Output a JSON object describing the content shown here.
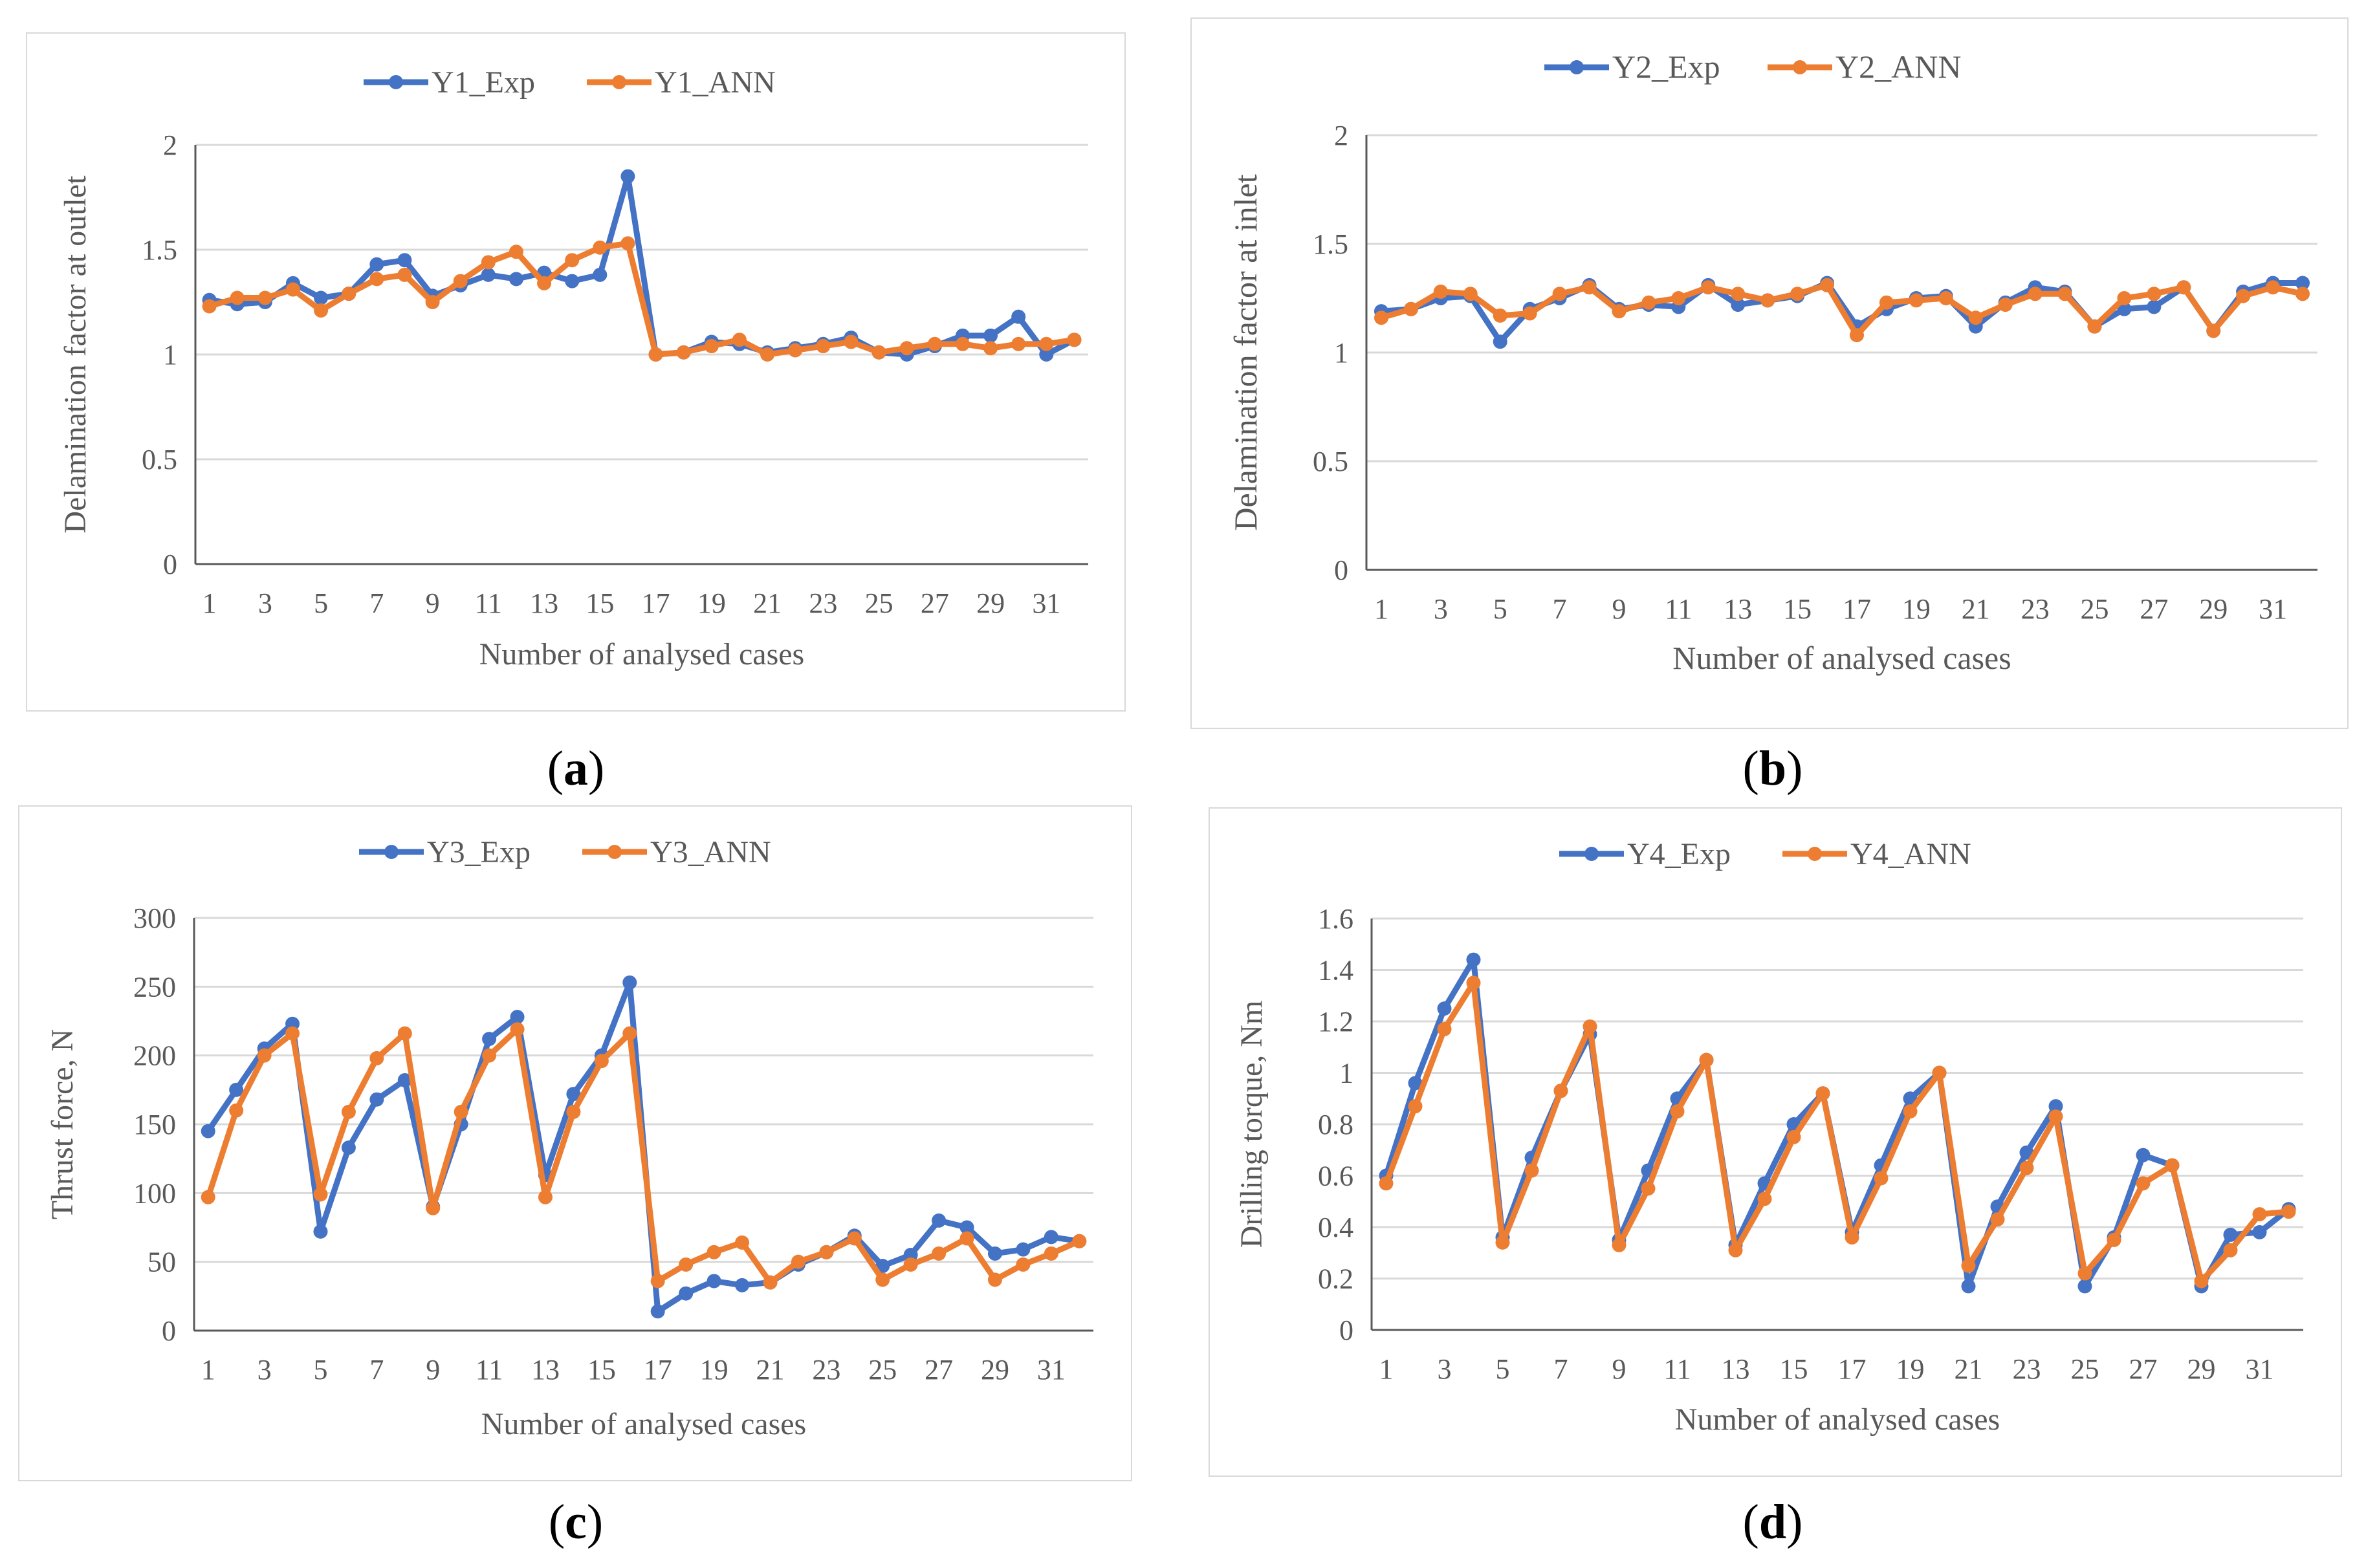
{
  "colors": {
    "exp": "#4472C4",
    "ann": "#ED7D31",
    "grid": "#d9d9d9",
    "axis": "#595959",
    "text": "#595959"
  },
  "captions": [
    "a",
    "b",
    "c",
    "d"
  ],
  "chart_data": [
    {
      "type": "line",
      "xlabel": "Number of analysed cases",
      "ylabel": "Delamination factor at outlet",
      "ylim": [
        0,
        2
      ],
      "yticks": [
        "0",
        "0.5",
        "1",
        "1.5",
        "2"
      ],
      "x": [
        1,
        2,
        3,
        4,
        5,
        6,
        7,
        8,
        9,
        10,
        11,
        12,
        13,
        14,
        15,
        16,
        17,
        18,
        19,
        20,
        21,
        22,
        23,
        24,
        25,
        26,
        27,
        28,
        29,
        30,
        31,
        32
      ],
      "xtick_labels": [
        "1",
        "3",
        "5",
        "7",
        "9",
        "11",
        "13",
        "15",
        "17",
        "19",
        "21",
        "23",
        "25",
        "27",
        "29",
        "31"
      ],
      "series": [
        {
          "name": "Y1_Exp",
          "values": [
            1.26,
            1.24,
            1.25,
            1.34,
            1.27,
            1.29,
            1.43,
            1.45,
            1.28,
            1.33,
            1.38,
            1.36,
            1.39,
            1.35,
            1.38,
            1.85,
            1.0,
            1.01,
            1.06,
            1.05,
            1.01,
            1.03,
            1.05,
            1.08,
            1.01,
            1.0,
            1.04,
            1.09,
            1.09,
            1.18,
            1.0,
            1.07
          ]
        },
        {
          "name": "Y1_ANN",
          "values": [
            1.23,
            1.27,
            1.27,
            1.31,
            1.21,
            1.29,
            1.36,
            1.38,
            1.25,
            1.35,
            1.44,
            1.49,
            1.34,
            1.45,
            1.51,
            1.53,
            1.0,
            1.01,
            1.04,
            1.07,
            1.0,
            1.02,
            1.04,
            1.06,
            1.01,
            1.03,
            1.05,
            1.05,
            1.03,
            1.05,
            1.05,
            1.07
          ]
        }
      ]
    },
    {
      "type": "line",
      "xlabel": "Number of analysed cases",
      "ylabel": "Delamination factor at inlet",
      "ylim": [
        0,
        2
      ],
      "yticks": [
        "0",
        "0.5",
        "1",
        "1.5",
        "2"
      ],
      "x": [
        1,
        2,
        3,
        4,
        5,
        6,
        7,
        8,
        9,
        10,
        11,
        12,
        13,
        14,
        15,
        16,
        17,
        18,
        19,
        20,
        21,
        22,
        23,
        24,
        25,
        26,
        27,
        28,
        29,
        30,
        31,
        32
      ],
      "xtick_labels": [
        "1",
        "3",
        "5",
        "7",
        "9",
        "11",
        "13",
        "15",
        "17",
        "19",
        "21",
        "23",
        "25",
        "27",
        "29",
        "31"
      ],
      "series": [
        {
          "name": "Y2_Exp",
          "values": [
            1.19,
            1.2,
            1.25,
            1.26,
            1.05,
            1.2,
            1.25,
            1.31,
            1.2,
            1.22,
            1.21,
            1.31,
            1.22,
            1.24,
            1.26,
            1.32,
            1.12,
            1.2,
            1.25,
            1.26,
            1.12,
            1.23,
            1.3,
            1.28,
            1.12,
            1.2,
            1.21,
            1.3,
            1.1,
            1.28,
            1.32,
            1.32
          ]
        },
        {
          "name": "Y2_ANN",
          "values": [
            1.16,
            1.2,
            1.28,
            1.27,
            1.17,
            1.18,
            1.27,
            1.3,
            1.19,
            1.23,
            1.25,
            1.3,
            1.27,
            1.24,
            1.27,
            1.31,
            1.08,
            1.23,
            1.24,
            1.25,
            1.16,
            1.22,
            1.27,
            1.27,
            1.12,
            1.25,
            1.27,
            1.3,
            1.1,
            1.26,
            1.3,
            1.27
          ]
        }
      ]
    },
    {
      "type": "line",
      "xlabel": "Number of analysed cases",
      "ylabel": "Thrust force, N",
      "ylim": [
        0,
        300
      ],
      "yticks": [
        "0",
        "50",
        "100",
        "150",
        "200",
        "250",
        "300"
      ],
      "x": [
        1,
        2,
        3,
        4,
        5,
        6,
        7,
        8,
        9,
        10,
        11,
        12,
        13,
        14,
        15,
        16,
        17,
        18,
        19,
        20,
        21,
        22,
        23,
        24,
        25,
        26,
        27,
        28,
        29,
        30,
        31,
        32
      ],
      "xtick_labels": [
        "1",
        "3",
        "5",
        "7",
        "9",
        "11",
        "13",
        "15",
        "17",
        "19",
        "21",
        "23",
        "25",
        "27",
        "29",
        "31"
      ],
      "series": [
        {
          "name": "Y3_Exp",
          "values": [
            145,
            175,
            205,
            223,
            72,
            133,
            168,
            182,
            90,
            150,
            212,
            228,
            113,
            172,
            200,
            253,
            14,
            27,
            36,
            33,
            35,
            48,
            57,
            69,
            47,
            55,
            80,
            75,
            56,
            59,
            68,
            65
          ]
        },
        {
          "name": "Y3_ANN",
          "values": [
            97,
            160,
            200,
            216,
            99,
            159,
            198,
            216,
            89,
            159,
            200,
            219,
            97,
            159,
            196,
            216,
            36,
            48,
            57,
            64,
            35,
            50,
            57,
            67,
            37,
            48,
            56,
            67,
            37,
            48,
            56,
            65
          ]
        }
      ]
    },
    {
      "type": "line",
      "xlabel": "Number of analysed cases",
      "ylabel": "Drilling  torque, Nm",
      "ylim": [
        0,
        1.6
      ],
      "yticks": [
        "0",
        "0.2",
        "0.4",
        "0.6",
        "0.8",
        "1",
        "1.2",
        "1.4",
        "1.6"
      ],
      "x": [
        1,
        2,
        3,
        4,
        5,
        6,
        7,
        8,
        9,
        10,
        11,
        12,
        13,
        14,
        15,
        16,
        17,
        18,
        19,
        20,
        21,
        22,
        23,
        24,
        25,
        26,
        27,
        28,
        29,
        30,
        31,
        32
      ],
      "xtick_labels": [
        "1",
        "3",
        "5",
        "7",
        "9",
        "11",
        "13",
        "15",
        "17",
        "19",
        "21",
        "23",
        "25",
        "27",
        "29",
        "31"
      ],
      "series": [
        {
          "name": "Y4_Exp",
          "values": [
            0.6,
            0.96,
            1.25,
            1.44,
            0.36,
            0.67,
            0.93,
            1.15,
            0.35,
            0.62,
            0.9,
            1.05,
            0.33,
            0.57,
            0.8,
            0.92,
            0.38,
            0.64,
            0.9,
            1.0,
            0.17,
            0.48,
            0.69,
            0.87,
            0.17,
            0.36,
            0.68,
            0.64,
            0.17,
            0.37,
            0.38,
            0.47
          ]
        },
        {
          "name": "Y4_ANN",
          "values": [
            0.57,
            0.87,
            1.17,
            1.35,
            0.34,
            0.62,
            0.93,
            1.18,
            0.33,
            0.55,
            0.85,
            1.05,
            0.31,
            0.51,
            0.75,
            0.92,
            0.36,
            0.59,
            0.85,
            1.0,
            0.25,
            0.43,
            0.63,
            0.83,
            0.22,
            0.35,
            0.57,
            0.64,
            0.19,
            0.31,
            0.45,
            0.46
          ]
        }
      ]
    }
  ]
}
